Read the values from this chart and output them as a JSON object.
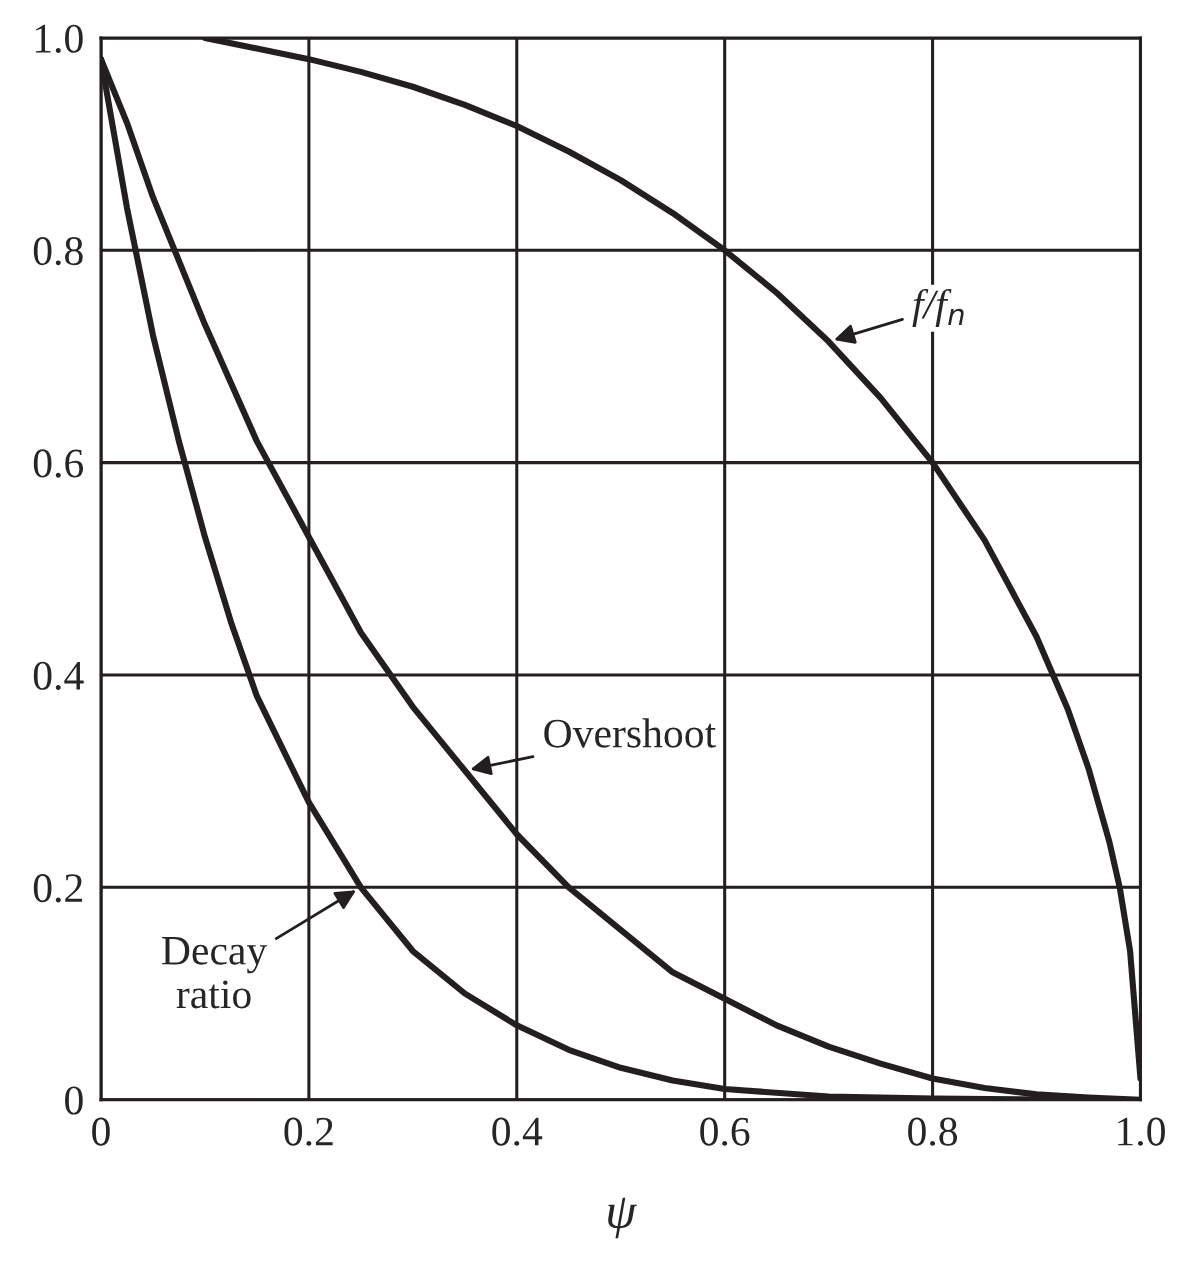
{
  "chart_data": {
    "type": "line",
    "xlabel": "ψ",
    "xlim": [
      0,
      1.0
    ],
    "ylim": [
      0,
      1.0
    ],
    "xticks": [
      0,
      0.2,
      0.4,
      0.6,
      0.8,
      {
        "value": 1,
        "label": "1.0"
      }
    ],
    "yticks": [
      0,
      0.2,
      0.4,
      0.6,
      0.8,
      {
        "value": 1,
        "label": "1.0"
      }
    ],
    "grid": true,
    "line_style": "solid",
    "marker": "none",
    "series": [
      {
        "color": "#231f20",
        "x": [
          0.1,
          0.15,
          0.2,
          0.25,
          0.3,
          0.35,
          0.4,
          0.45,
          0.5,
          0.55,
          0.6,
          0.65,
          0.7,
          0.75,
          0.8,
          0.85,
          0.9,
          0.93,
          0.95,
          0.97,
          0.98,
          0.99,
          1.0
        ],
        "values": [
          1.0,
          0.99,
          0.98,
          0.968,
          0.954,
          0.937,
          0.917,
          0.893,
          0.866,
          0.835,
          0.8,
          0.76,
          0.714,
          0.661,
          0.6,
          0.527,
          0.436,
          0.368,
          0.312,
          0.243,
          0.2,
          0.14,
          0.02
        ]
      },
      {
        "color": "#231f20",
        "x": [
          0,
          0.025,
          0.05,
          0.075,
          0.1,
          0.15,
          0.2,
          0.25,
          0.3,
          0.35,
          0.4,
          0.45,
          0.5,
          0.55,
          0.6,
          0.65,
          0.7,
          0.75,
          0.8,
          0.85,
          0.9,
          0.95,
          1.0
        ],
        "values": [
          0.98,
          0.92,
          0.85,
          0.79,
          0.73,
          0.62,
          0.53,
          0.44,
          0.37,
          0.31,
          0.25,
          0.2,
          0.16,
          0.12,
          0.095,
          0.07,
          0.05,
          0.034,
          0.02,
          0.011,
          0.005,
          0.002,
          0
        ]
      },
      {
        "color": "#231f20",
        "x": [
          0,
          0.025,
          0.05,
          0.075,
          0.1,
          0.125,
          0.15,
          0.2,
          0.25,
          0.3,
          0.35,
          0.4,
          0.45,
          0.5,
          0.55,
          0.6,
          0.7,
          0.8,
          0.93
        ],
        "values": [
          0.98,
          0.84,
          0.72,
          0.62,
          0.53,
          0.45,
          0.38,
          0.28,
          0.2,
          0.14,
          0.1,
          0.07,
          0.047,
          0.03,
          0.018,
          0.01,
          0.003,
          0.001,
          0
        ]
      }
    ],
    "annotations": [
      {
        "text": "f/f$_{n}$",
        "x": 0.7,
        "y": 0.714
      },
      {
        "text": "Overshoot",
        "x": 0.35,
        "y": 0.31
      },
      {
        "text": "Decay\nratio",
        "x": 0.25,
        "y": 0.2
      }
    ]
  }
}
